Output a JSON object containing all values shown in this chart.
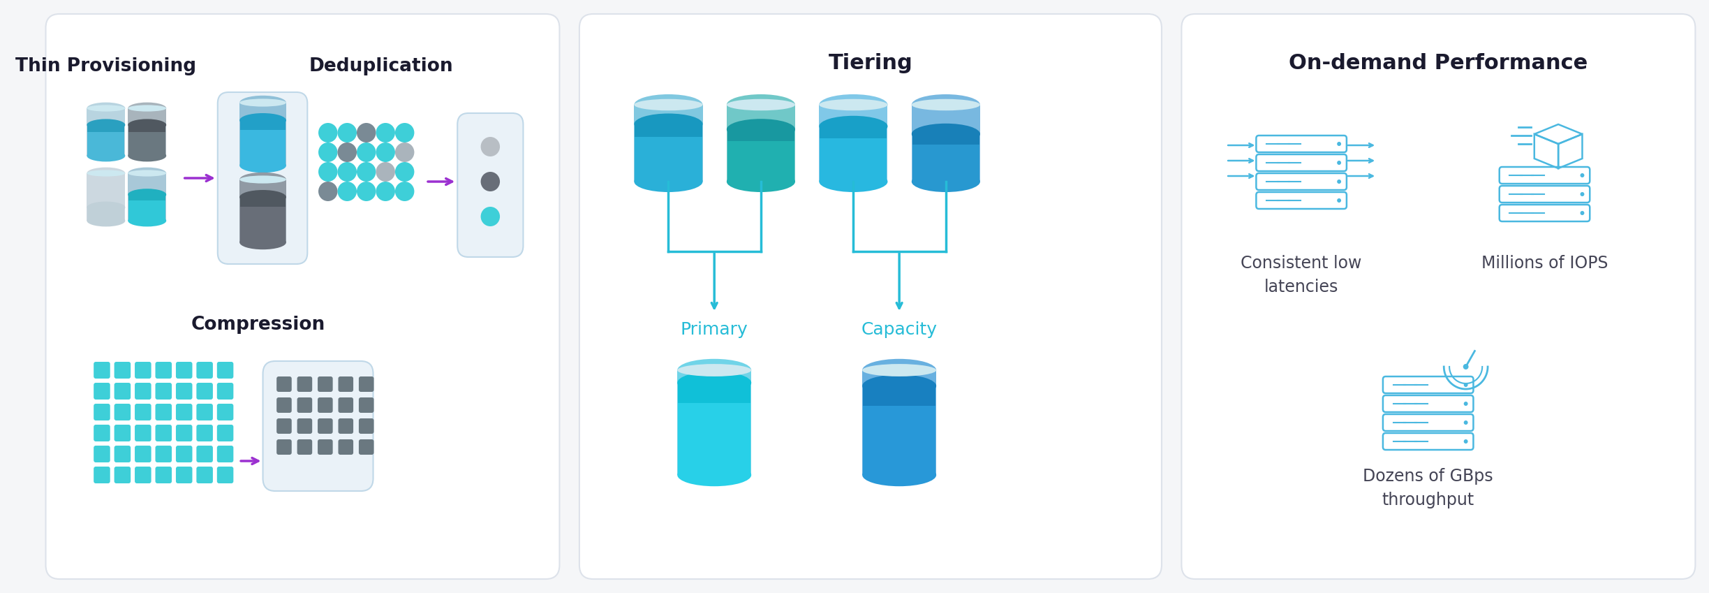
{
  "bg_color": "#f5f6f8",
  "panel_bg": "#ffffff",
  "panel_border": "#dde2ea",
  "title_color": "#1a1a2e",
  "purple": "#9b30d0",
  "teal": "#26bcd7",
  "srv_color": "#4ab8e0",
  "cyan_dot": "#3ecfd8",
  "gray_dot": "#7a8a95",
  "panel1_title_thin": "Thin Provisioning",
  "panel1_title_dedup": "Deduplication",
  "panel1_title_comp": "Compression",
  "panel2_title": "Tiering",
  "panel2_primary": "Primary",
  "panel2_capacity": "Capacity",
  "panel3_title": "On-demand Performance",
  "panel3_label1": "Consistent low\nlatencies",
  "panel3_label2": "Millions of IOPS",
  "panel3_label3": "Dozens of GBps\nthroughput"
}
